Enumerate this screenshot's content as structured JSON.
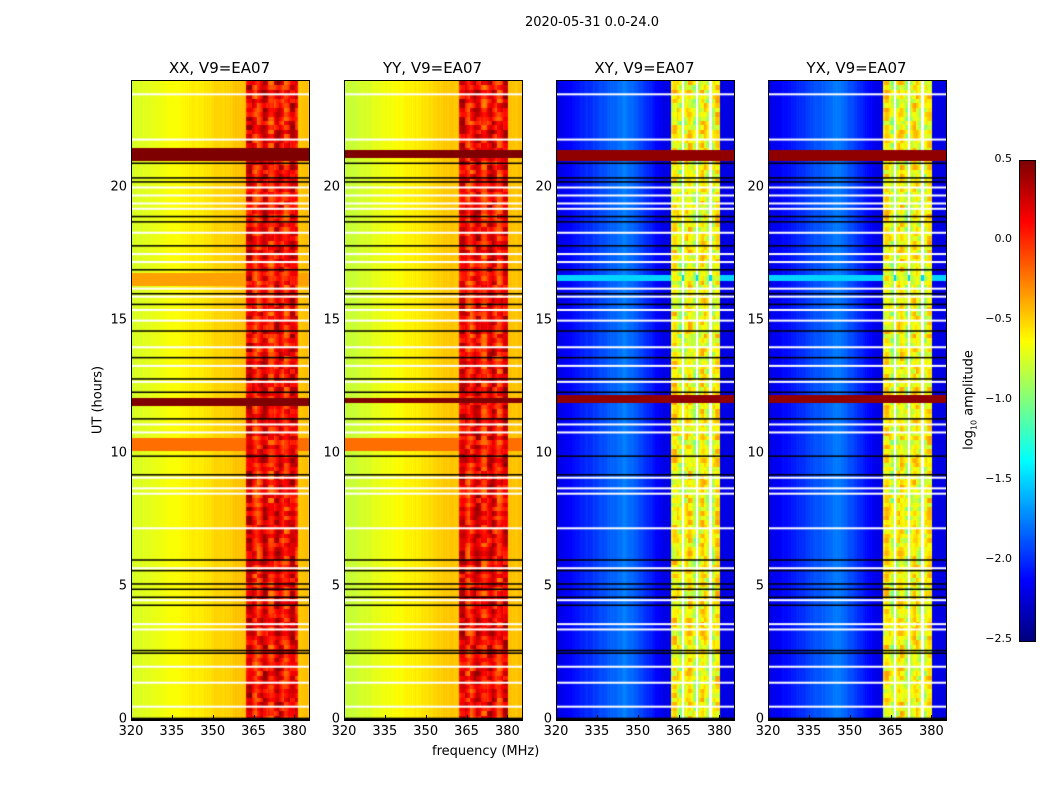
{
  "chart_data": {
    "type": "heatmap",
    "suptitle": "2020-05-31 0.0-24.0",
    "xlabel": "frequency (MHz)",
    "ylabel": "UT (hours)",
    "xlim": [
      320,
      385
    ],
    "ylim": [
      0,
      24
    ],
    "xticks": [
      "320",
      "335",
      "350",
      "365",
      "380"
    ],
    "yticks": [
      "0",
      "5",
      "10",
      "15",
      "20"
    ],
    "colorbar": {
      "label": "log10 amplitude",
      "label_main": "log",
      "label_sub": "10",
      "label_rest": " amplitude",
      "range": [
        -2.5,
        0.5
      ],
      "ticks": [
        "0.5",
        "0.0",
        "−0.5",
        "−1.0",
        "−1.5",
        "−2.0",
        "−2.5"
      ],
      "colormap": "jet"
    },
    "panels": [
      {
        "title": "XX, V9=EA07",
        "base_320": -0.75,
        "base_360": -0.45,
        "band": [
          362,
          381
        ],
        "band_level": 0.1,
        "bright_rows": [
          [
            21.0,
            21.5,
            0.5
          ],
          [
            11.8,
            12.1,
            0.5
          ],
          [
            10.1,
            10.6,
            -0.2
          ],
          [
            16.3,
            16.8,
            -0.35
          ]
        ]
      },
      {
        "title": "YY, V9=EA07",
        "base_320": -0.8,
        "base_360": -0.45,
        "band": [
          362,
          380
        ],
        "band_level": 0.1,
        "bright_rows": [
          [
            21.1,
            21.4,
            0.5
          ],
          [
            11.9,
            12.1,
            0.5
          ],
          [
            10.1,
            10.6,
            -0.2
          ]
        ]
      },
      {
        "title": "XY, V9=EA07",
        "base_320": -2.2,
        "base_345": -1.75,
        "base_360": -2.2,
        "band": [
          362,
          380
        ],
        "band_level": -0.7,
        "bright_rows": [
          [
            21.0,
            21.4,
            0.45
          ],
          [
            11.9,
            12.2,
            0.45
          ],
          [
            16.5,
            16.7,
            -1.5
          ]
        ]
      },
      {
        "title": "YX, V9=EA07",
        "base_320": -2.2,
        "base_345": -1.75,
        "base_360": -2.2,
        "band": [
          362,
          380
        ],
        "band_level": -0.7,
        "bright_rows": [
          [
            21.0,
            21.4,
            0.45
          ],
          [
            11.9,
            12.2,
            0.45
          ],
          [
            16.5,
            16.7,
            -1.5
          ]
        ]
      }
    ],
    "flagged_hours": [
      0.5,
      1.4,
      2.0,
      3.4,
      3.6,
      4.5,
      5.7,
      7.2,
      8.5,
      8.7,
      9.1,
      10.8,
      11.1,
      12.7,
      13.3,
      14.0,
      15.0,
      15.4,
      15.9,
      16.2,
      17.2,
      17.5,
      18.3,
      19.2,
      19.4,
      19.7,
      20.0,
      21.8,
      23.5
    ],
    "black_hours": [
      0.05,
      2.5,
      2.6,
      4.3,
      4.6,
      4.9,
      5.1,
      5.6,
      6.0,
      9.2,
      9.9,
      11.3,
      12.3,
      12.8,
      13.6,
      14.6,
      15.6,
      16.0,
      16.9,
      17.8,
      18.7,
      18.9,
      20.2,
      20.35,
      20.9
    ]
  }
}
